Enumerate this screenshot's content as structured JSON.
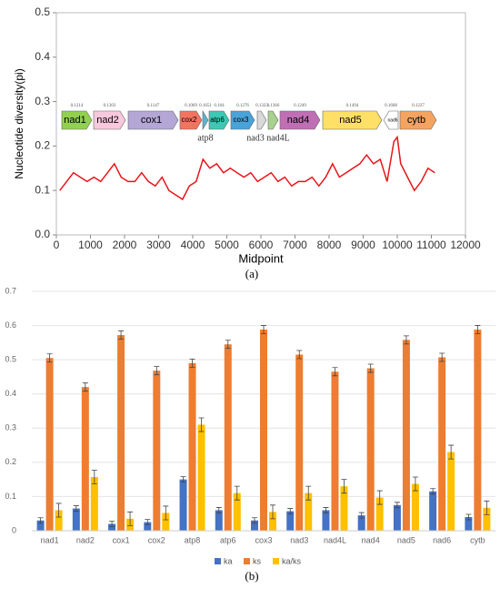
{
  "chart_data": [
    {
      "type": "line",
      "caption": "(a)",
      "x_label": "Midpoint",
      "y_label": "Nucleotide diversity(pi)",
      "xlim": [
        0,
        12000
      ],
      "xticks": [
        0,
        1000,
        2000,
        3000,
        4000,
        5000,
        6000,
        7000,
        8000,
        9000,
        10000,
        11000,
        12000
      ],
      "ylim": [
        0,
        0.5
      ],
      "yticks": [
        {
          "value": 0,
          "label": "0.0"
        },
        0.1,
        0.2,
        0.3,
        0.4,
        0.5
      ],
      "x": [
        100,
        300,
        500,
        700,
        900,
        1100,
        1300,
        1500,
        1700,
        1900,
        2100,
        2300,
        2500,
        2700,
        2900,
        3100,
        3300,
        3500,
        3700,
        3900,
        4100,
        4300,
        4500,
        4700,
        4900,
        5100,
        5300,
        5500,
        5700,
        5900,
        6100,
        6300,
        6500,
        6700,
        6900,
        7100,
        7300,
        7500,
        7700,
        7900,
        8100,
        8300,
        8500,
        8700,
        8900,
        9100,
        9300,
        9500,
        9700,
        9900,
        10000,
        10100,
        10300,
        10500,
        10700,
        10900,
        11100
      ],
      "series": [
        {
          "color": "#e8141b",
          "values": [
            0.1,
            0.12,
            0.14,
            0.13,
            0.12,
            0.13,
            0.12,
            0.14,
            0.16,
            0.13,
            0.12,
            0.12,
            0.14,
            0.12,
            0.11,
            0.13,
            0.1,
            0.09,
            0.08,
            0.11,
            0.12,
            0.17,
            0.15,
            0.16,
            0.14,
            0.15,
            0.14,
            0.13,
            0.14,
            0.12,
            0.13,
            0.14,
            0.12,
            0.13,
            0.11,
            0.12,
            0.12,
            0.13,
            0.11,
            0.13,
            0.16,
            0.13,
            0.14,
            0.15,
            0.16,
            0.18,
            0.16,
            0.17,
            0.12,
            0.21,
            0.22,
            0.16,
            0.13,
            0.1,
            0.12,
            0.15,
            0.14
          ]
        }
      ],
      "genes": [
        {
          "name": "nad1",
          "pi": 0.1214,
          "color": "#92d050"
        },
        {
          "name": "nad2",
          "pi": 0.1303,
          "color": "#f9c8dc"
        },
        {
          "name": "cox1",
          "pi": 0.1147,
          "color": "#b4a7d6"
        },
        {
          "name": "cox2",
          "pi": 0.1069,
          "color": "#f4735f"
        },
        {
          "name": "atp8",
          "pi": 0.1651,
          "color": "#5fb4d0"
        },
        {
          "name": "atp6",
          "pi": 0.164,
          "color": "#3cc8b4"
        },
        {
          "name": "cox3",
          "pi": 0.1276,
          "color": "#4aa3d8"
        },
        {
          "name": "nad3",
          "pi": 0.1323,
          "color": "#d9d9d9"
        },
        {
          "name": "nad4L",
          "pi": 0.1366,
          "color": "#a9d18e"
        },
        {
          "name": "nad4",
          "pi": 0.1249,
          "color": "#c06fb4"
        },
        {
          "name": "nad5",
          "pi": 0.1494,
          "color": "#ffe066"
        },
        {
          "name": "nad6",
          "pi": 0.1608,
          "color": "#ffffff"
        },
        {
          "name": "cytb",
          "pi": 0.1227,
          "color": "#f4a460"
        }
      ]
    },
    {
      "type": "bar",
      "caption": "(b)",
      "ylim": [
        0,
        0.7
      ],
      "yticks": [
        0,
        0.1,
        0.2,
        0.3,
        0.4,
        0.5,
        0.6,
        0.7
      ],
      "grid": true,
      "categories": [
        "nad1",
        "nad2",
        "cox1",
        "cox2",
        "atp8",
        "atp6",
        "cox3",
        "nad3",
        "nad4L",
        "nad4",
        "nad5",
        "nad6",
        "cytb"
      ],
      "series": [
        {
          "name": "ka",
          "color": "#4472c4",
          "values": [
            0.03,
            0.065,
            0.02,
            0.025,
            0.15,
            0.06,
            0.03,
            0.057,
            0.06,
            0.045,
            0.075,
            0.115,
            0.04
          ],
          "errors": [
            0.008,
            0.008,
            0.008,
            0.008,
            0.008,
            0.008,
            0.008,
            0.008,
            0.008,
            0.008,
            0.008,
            0.008,
            0.008
          ]
        },
        {
          "name": "ks",
          "color": "#ed7d31",
          "values": [
            0.505,
            0.42,
            0.572,
            0.468,
            0.49,
            0.545,
            0.588,
            0.515,
            0.465,
            0.475,
            0.558,
            0.507,
            0.588
          ],
          "errors": [
            0.012,
            0.012,
            0.012,
            0.012,
            0.012,
            0.012,
            0.012,
            0.012,
            0.012,
            0.012,
            0.012,
            0.012,
            0.012
          ]
        },
        {
          "name": "ka/ks",
          "color": "#ffc000",
          "values": [
            0.06,
            0.157,
            0.035,
            0.052,
            0.31,
            0.11,
            0.055,
            0.11,
            0.13,
            0.097,
            0.137,
            0.23,
            0.067
          ],
          "errors": [
            0.02,
            0.02,
            0.02,
            0.02,
            0.02,
            0.02,
            0.02,
            0.02,
            0.02,
            0.02,
            0.02,
            0.02,
            0.02
          ]
        }
      ]
    }
  ]
}
